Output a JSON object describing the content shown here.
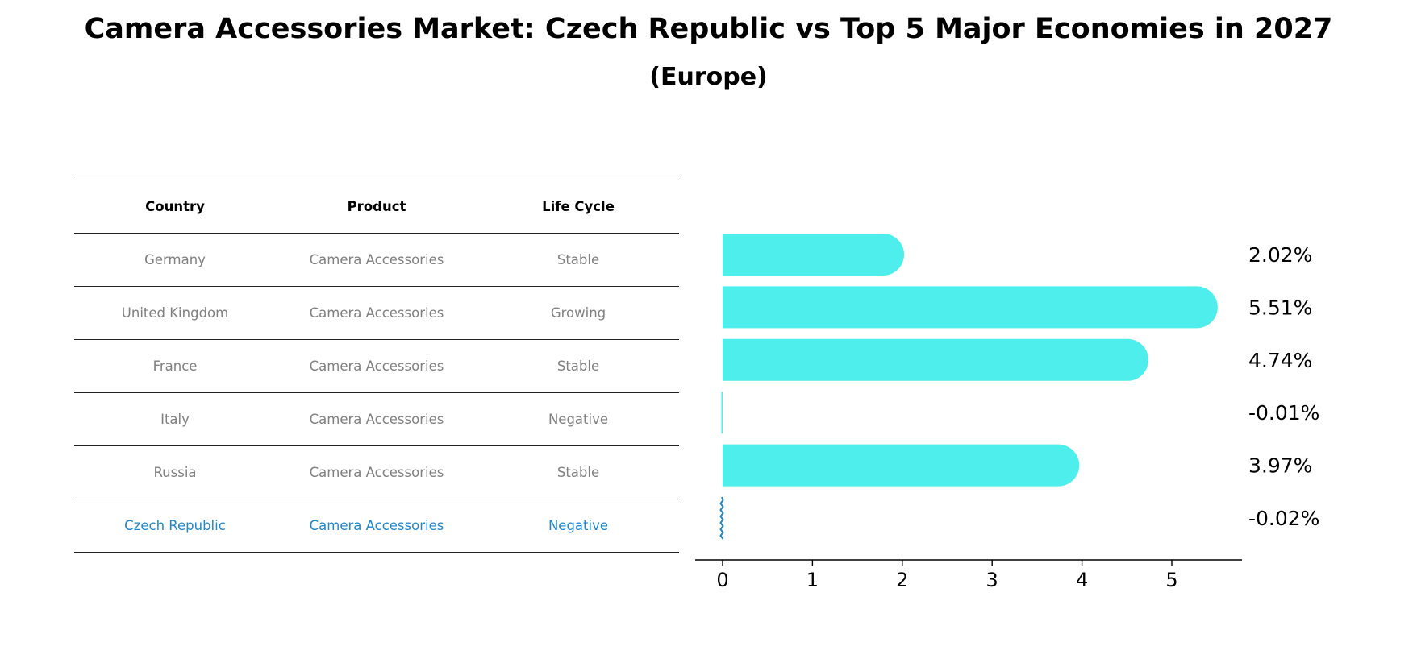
{
  "title": "Camera Accessories Market: Czech Republic vs Top 5 Major Economies in 2027",
  "subtitle": "(Europe)",
  "colors": {
    "bar": "#4eeeec",
    "highlight": "#1f87cc",
    "muted_text": "#808080"
  },
  "table": {
    "headers": [
      "Country",
      "Product",
      "Life Cycle"
    ],
    "rows": [
      {
        "country": "Germany",
        "product": "Camera Accessories",
        "life_cycle": "Stable"
      },
      {
        "country": "United Kingdom",
        "product": "Camera Accessories",
        "life_cycle": "Growing"
      },
      {
        "country": "France",
        "product": "Camera Accessories",
        "life_cycle": "Stable"
      },
      {
        "country": "Italy",
        "product": "Camera Accessories",
        "life_cycle": "Negative"
      },
      {
        "country": "Russia",
        "product": "Camera Accessories",
        "life_cycle": "Stable"
      },
      {
        "country": "Czech Republic",
        "product": "Camera Accessories",
        "life_cycle": "Negative"
      }
    ]
  },
  "chart_data": {
    "type": "bar",
    "orientation": "horizontal",
    "title": "Camera Accessories Market: Czech Republic vs Top 5 Major Economies in 2027",
    "subtitle": "(Europe)",
    "categories": [
      "Germany",
      "United Kingdom",
      "France",
      "Italy",
      "Russia",
      "Czech Republic"
    ],
    "values": [
      2.02,
      5.51,
      4.74,
      -0.01,
      3.97,
      -0.02
    ],
    "value_labels": [
      "2.02%",
      "5.51%",
      "4.74%",
      "-0.01%",
      "3.97%",
      "-0.02%"
    ],
    "highlight_category": "Czech Republic",
    "xlim": [
      -0.3,
      5.8
    ],
    "xticks": [
      0,
      1,
      2,
      3,
      4,
      5
    ],
    "xlabel": "",
    "ylabel": "",
    "grid": false
  }
}
